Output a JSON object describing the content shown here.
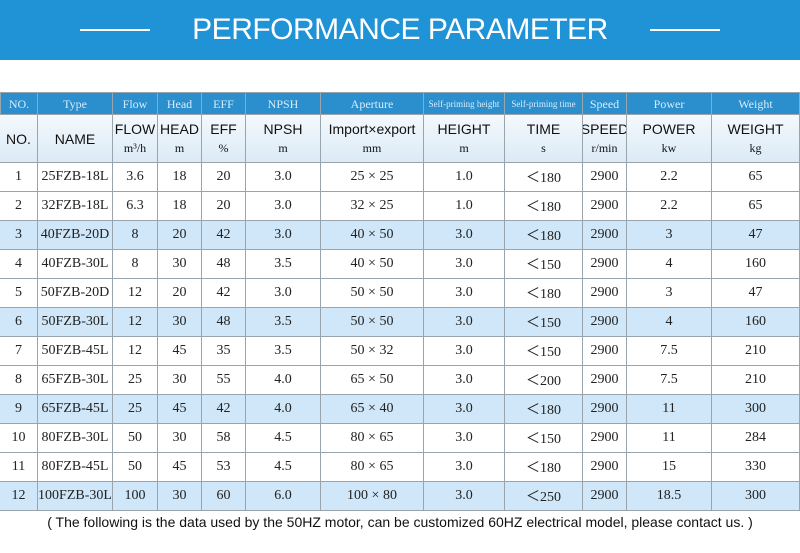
{
  "header": {
    "title": "PERFORMANCE PARAMETER"
  },
  "table": {
    "header_top": [
      "NO.",
      "Type",
      "Flow",
      "Head",
      "EFF",
      "NPSH",
      "Aperture",
      "Self-priming height",
      "Self-priming time",
      "Speed",
      "Power",
      "Weight"
    ],
    "header_cells": [
      {
        "name": "NO."
      },
      {
        "name": "NAME"
      },
      {
        "name": "FLOW",
        "unit": "m³/h"
      },
      {
        "name": "HEAD",
        "unit": "m"
      },
      {
        "name": "EFF",
        "unit": "%"
      },
      {
        "name": "NPSH",
        "unit": "m"
      },
      {
        "name": "Import×export",
        "unit": "mm"
      },
      {
        "name": "HEIGHT",
        "unit": "m"
      },
      {
        "name": "TIME",
        "unit": "s"
      },
      {
        "name": "SPEED",
        "unit": "r/min"
      },
      {
        "name": "POWER",
        "unit": "kw"
      },
      {
        "name": "WEIGHT",
        "unit": "kg"
      }
    ],
    "rows": [
      [
        "1",
        "25FZB-18L",
        "3.6",
        "18",
        "20",
        "3.0",
        "25 × 25",
        "1.0",
        "＜180",
        "2900",
        "2.2",
        "65"
      ],
      [
        "2",
        "32FZB-18L",
        "6.3",
        "18",
        "20",
        "3.0",
        "32 × 25",
        "1.0",
        "＜180",
        "2900",
        "2.2",
        "65"
      ],
      [
        "3",
        "40FZB-20D",
        "8",
        "20",
        "42",
        "3.0",
        "40 × 50",
        "3.0",
        "＜180",
        "2900",
        "3",
        "47"
      ],
      [
        "4",
        "40FZB-30L",
        "8",
        "30",
        "48",
        "3.5",
        "40 × 50",
        "3.0",
        "＜150",
        "2900",
        "4",
        "160"
      ],
      [
        "5",
        "50FZB-20D",
        "12",
        "20",
        "42",
        "3.0",
        "50 × 50",
        "3.0",
        "＜180",
        "2900",
        "3",
        "47"
      ],
      [
        "6",
        "50FZB-30L",
        "12",
        "30",
        "48",
        "3.5",
        "50 × 50",
        "3.0",
        "＜150",
        "2900",
        "4",
        "160"
      ],
      [
        "7",
        "50FZB-45L",
        "12",
        "45",
        "35",
        "3.5",
        "50 × 32",
        "3.0",
        "＜150",
        "2900",
        "7.5",
        "210"
      ],
      [
        "8",
        "65FZB-30L",
        "25",
        "30",
        "55",
        "4.0",
        "65 × 50",
        "3.0",
        "＜200",
        "2900",
        "7.5",
        "210"
      ],
      [
        "9",
        "65FZB-45L",
        "25",
        "45",
        "42",
        "4.0",
        "65 × 40",
        "3.0",
        "＜180",
        "2900",
        "11",
        "300"
      ],
      [
        "10",
        "80FZB-30L",
        "50",
        "30",
        "58",
        "4.5",
        "80 × 65",
        "3.0",
        "＜150",
        "2900",
        "11",
        "284"
      ],
      [
        "11",
        "80FZB-45L",
        "50",
        "45",
        "53",
        "4.5",
        "80 × 65",
        "3.0",
        "＜180",
        "2900",
        "15",
        "330"
      ],
      [
        "12",
        "100FZB-30L",
        "100",
        "30",
        "60",
        "6.0",
        "100 × 80",
        "3.0",
        "＜250",
        "2900",
        "18.5",
        "300"
      ]
    ]
  },
  "footer": {
    "note": "( The following is the data used by the 50HZ motor, can be customized 60HZ electrical model, please contact us. )"
  }
}
